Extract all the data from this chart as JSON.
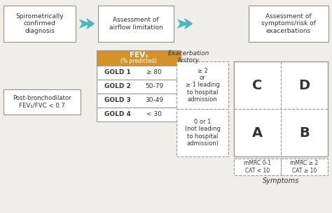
{
  "background_color": "#f0eeeb",
  "box_edge_color": "#999999",
  "arrow_color": "#4db8bc",
  "gold_header_color": "#d4922a",
  "gold_header_text_1": "FEV₁",
  "gold_header_text_2": "(% predicted)",
  "gold_rows": [
    [
      "GOLD 1",
      "≥ 80"
    ],
    [
      "GOLD 2",
      "50-79"
    ],
    [
      "GOLD 3",
      "30-49"
    ],
    [
      "GOLD 4",
      "< 30"
    ]
  ],
  "box1_text": "Spirometrically\nconfirmed\ndiagnosis",
  "box2_text": "Assessment of\nairflow limitation",
  "box3_text": "Assessment of\nsymptoms/risk of\nexacerbations",
  "box_left_text": "Post-bronchodilator\nFEV₁/FVC < 0.7",
  "exacerbation_label": "Exacerbation\nhistory",
  "exacerbation_high": "≥ 2\nor\n≥ 1 leading\nto hospital\nadmission",
  "exacerbation_low": "0 or 1\n(not leading\nto hospital\nadmission)",
  "quadrant_C": "C",
  "quadrant_D": "D",
  "quadrant_A": "A",
  "quadrant_B": "B",
  "symptoms_label": "Symptoms",
  "mmrc_left": "mMRC 0-1\nCAT < 10",
  "mmrc_right": "mMRC ≥ 2\nCAT ≥ 10",
  "dashed_color": "#999999",
  "text_color": "#333333",
  "figw": 4.74,
  "figh": 3.05,
  "dpi": 100
}
